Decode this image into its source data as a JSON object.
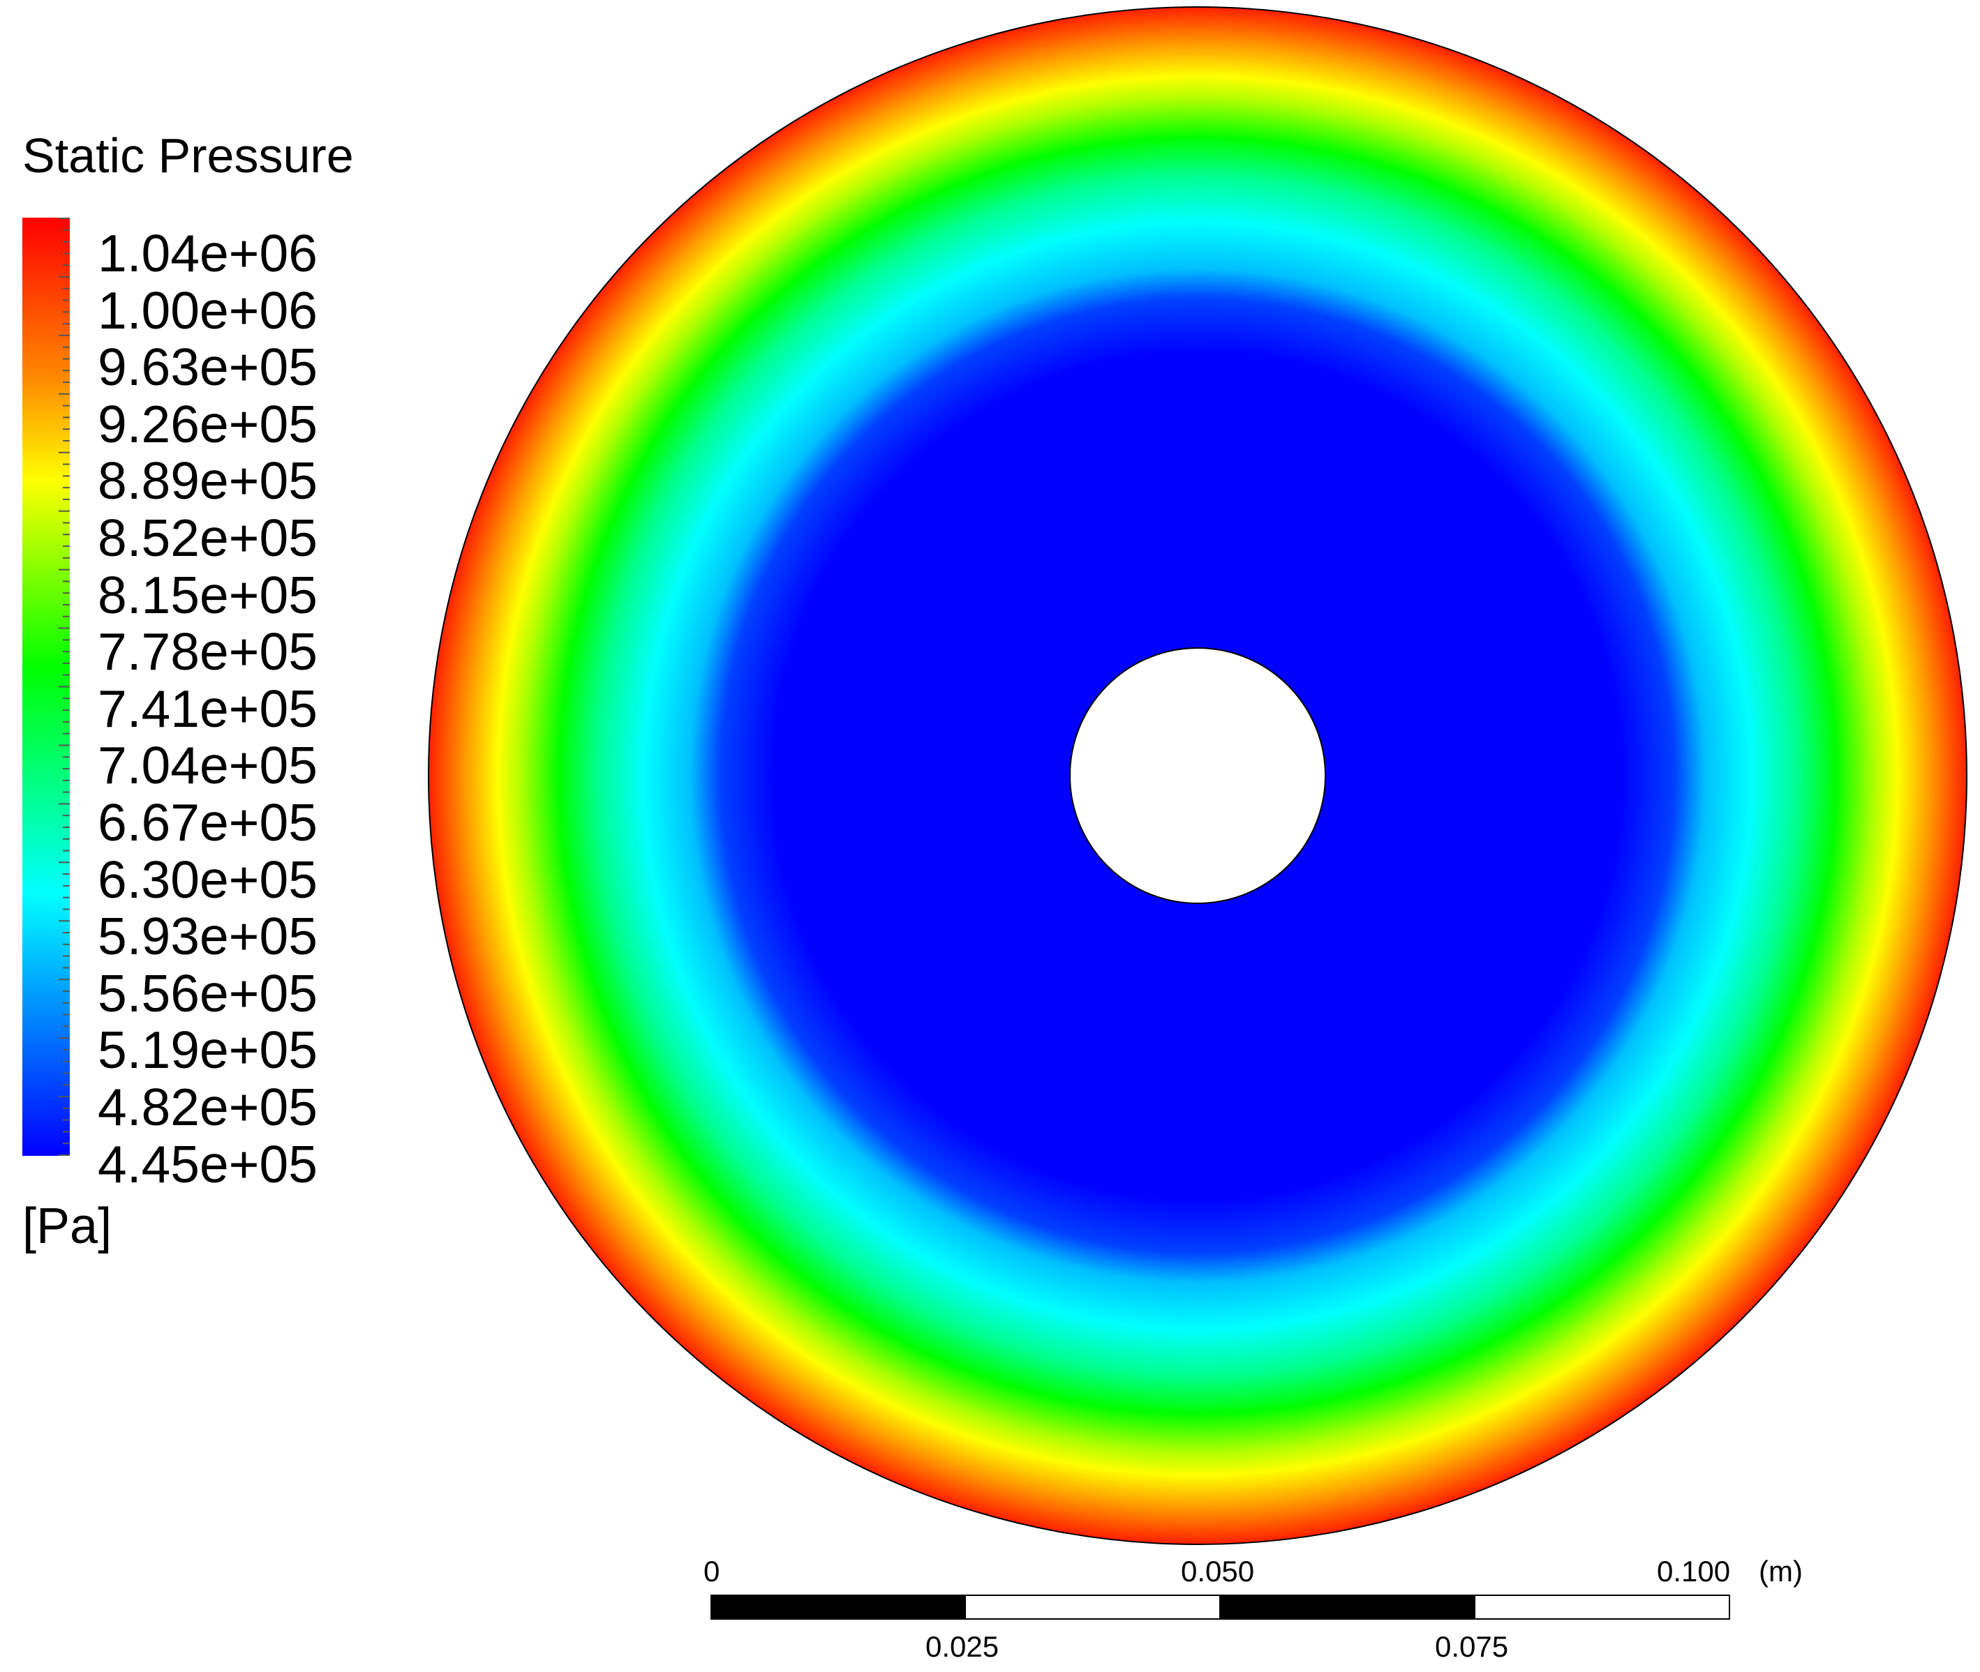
{
  "legend": {
    "title": "Static Pressure",
    "unit": "[Pa]",
    "ticks": [
      "1.04e+06",
      "1.00e+06",
      "9.63e+05",
      "9.26e+05",
      "8.89e+05",
      "8.52e+05",
      "8.15e+05",
      "7.78e+05",
      "7.41e+05",
      "7.04e+05",
      "6.67e+05",
      "6.30e+05",
      "5.93e+05",
      "5.56e+05",
      "5.19e+05",
      "4.82e+05",
      "4.45e+05"
    ],
    "colormap": [
      "#ff0000",
      "#ff8800",
      "#ffff00",
      "#00ff00",
      "#00ffff",
      "#0000ff"
    ]
  },
  "contour": {
    "quantity": "Static Pressure",
    "min": 445000,
    "max": 1040000,
    "radial_profile": [
      {
        "r_fraction": 0.0,
        "value": 445000
      },
      {
        "r_fraction": 0.55,
        "value": 445000
      },
      {
        "r_fraction": 0.65,
        "value": 540000
      },
      {
        "r_fraction": 0.75,
        "value": 610000
      },
      {
        "r_fraction": 0.84,
        "value": 760000
      },
      {
        "r_fraction": 0.92,
        "value": 910000
      },
      {
        "r_fraction": 1.0,
        "value": 1040000
      }
    ]
  },
  "scale_bar": {
    "labels_top": [
      "0",
      "0.050",
      "0.100"
    ],
    "labels_bottom": [
      "0.025",
      "0.075"
    ],
    "unit": "(m)"
  }
}
